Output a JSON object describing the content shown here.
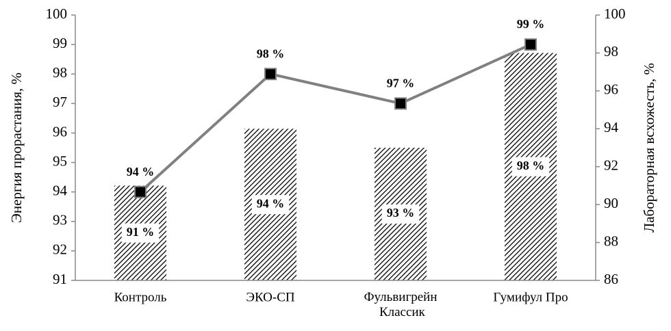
{
  "chart_data": {
    "type": "bar",
    "categories": [
      "Контроль",
      "ЭКО-СП",
      "Фульвигрейн Классик",
      "Гумифул Про"
    ],
    "y_label": "Энергия прорастания, %",
    "y2_label": "Лабораторная всхожесть, %",
    "ylim": [
      91,
      100
    ],
    "yticks": [
      91,
      92,
      93,
      94,
      95,
      96,
      97,
      98,
      99,
      100
    ],
    "y2lim": [
      86,
      100
    ],
    "y2ticks": [
      86,
      88,
      90,
      92,
      94,
      96,
      98,
      100
    ],
    "grid": false,
    "series": [
      {
        "type": "bar",
        "axis": "y2",
        "color": "#000000",
        "values": [
          91,
          94,
          93,
          98
        ],
        "value_labels": [
          "91 %",
          "94 %",
          "93 %",
          "98 %"
        ]
      },
      {
        "type": "line",
        "axis": "y",
        "color": "#808080",
        "marker_color": "#000000",
        "values": [
          94,
          98,
          97,
          99
        ],
        "value_labels": [
          "94 %",
          "98 %",
          "97 %",
          "99 %"
        ]
      }
    ]
  }
}
